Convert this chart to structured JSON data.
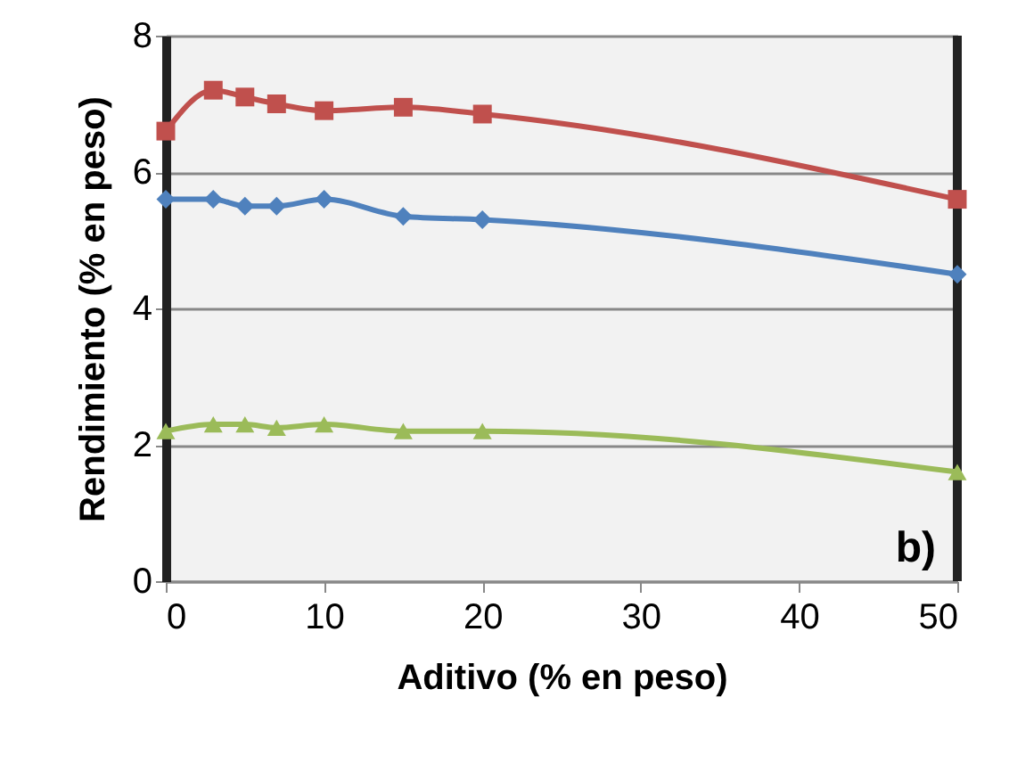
{
  "chart_data": {
    "type": "line",
    "xlabel": "Aditivo (% en peso)",
    "ylabel": "Rendimiento (% en peso)",
    "x": [
      0,
      3,
      5,
      7,
      10,
      15,
      20,
      50
    ],
    "series": [
      {
        "color": "#c0504d",
        "marker": "square",
        "values": [
          6.6,
          7.2,
          7.1,
          7.0,
          6.9,
          6.95,
          6.85,
          5.6
        ]
      },
      {
        "color": "#4f81bd",
        "marker": "diamond",
        "values": [
          5.6,
          5.6,
          5.5,
          5.5,
          5.6,
          5.35,
          5.3,
          4.5
        ]
      },
      {
        "color": "#9bbb59",
        "marker": "triangle",
        "values": [
          2.2,
          2.3,
          2.3,
          2.25,
          2.3,
          2.2,
          2.2,
          1.6
        ]
      }
    ],
    "xlim": [
      0,
      50
    ],
    "xticks": [
      0,
      10,
      20,
      30,
      40,
      50
    ],
    "ylim": [
      0,
      8
    ],
    "yticks": [
      0,
      2,
      4,
      6,
      8
    ],
    "grid": "y",
    "line_style": "solid",
    "annotations": [
      "b)"
    ]
  }
}
